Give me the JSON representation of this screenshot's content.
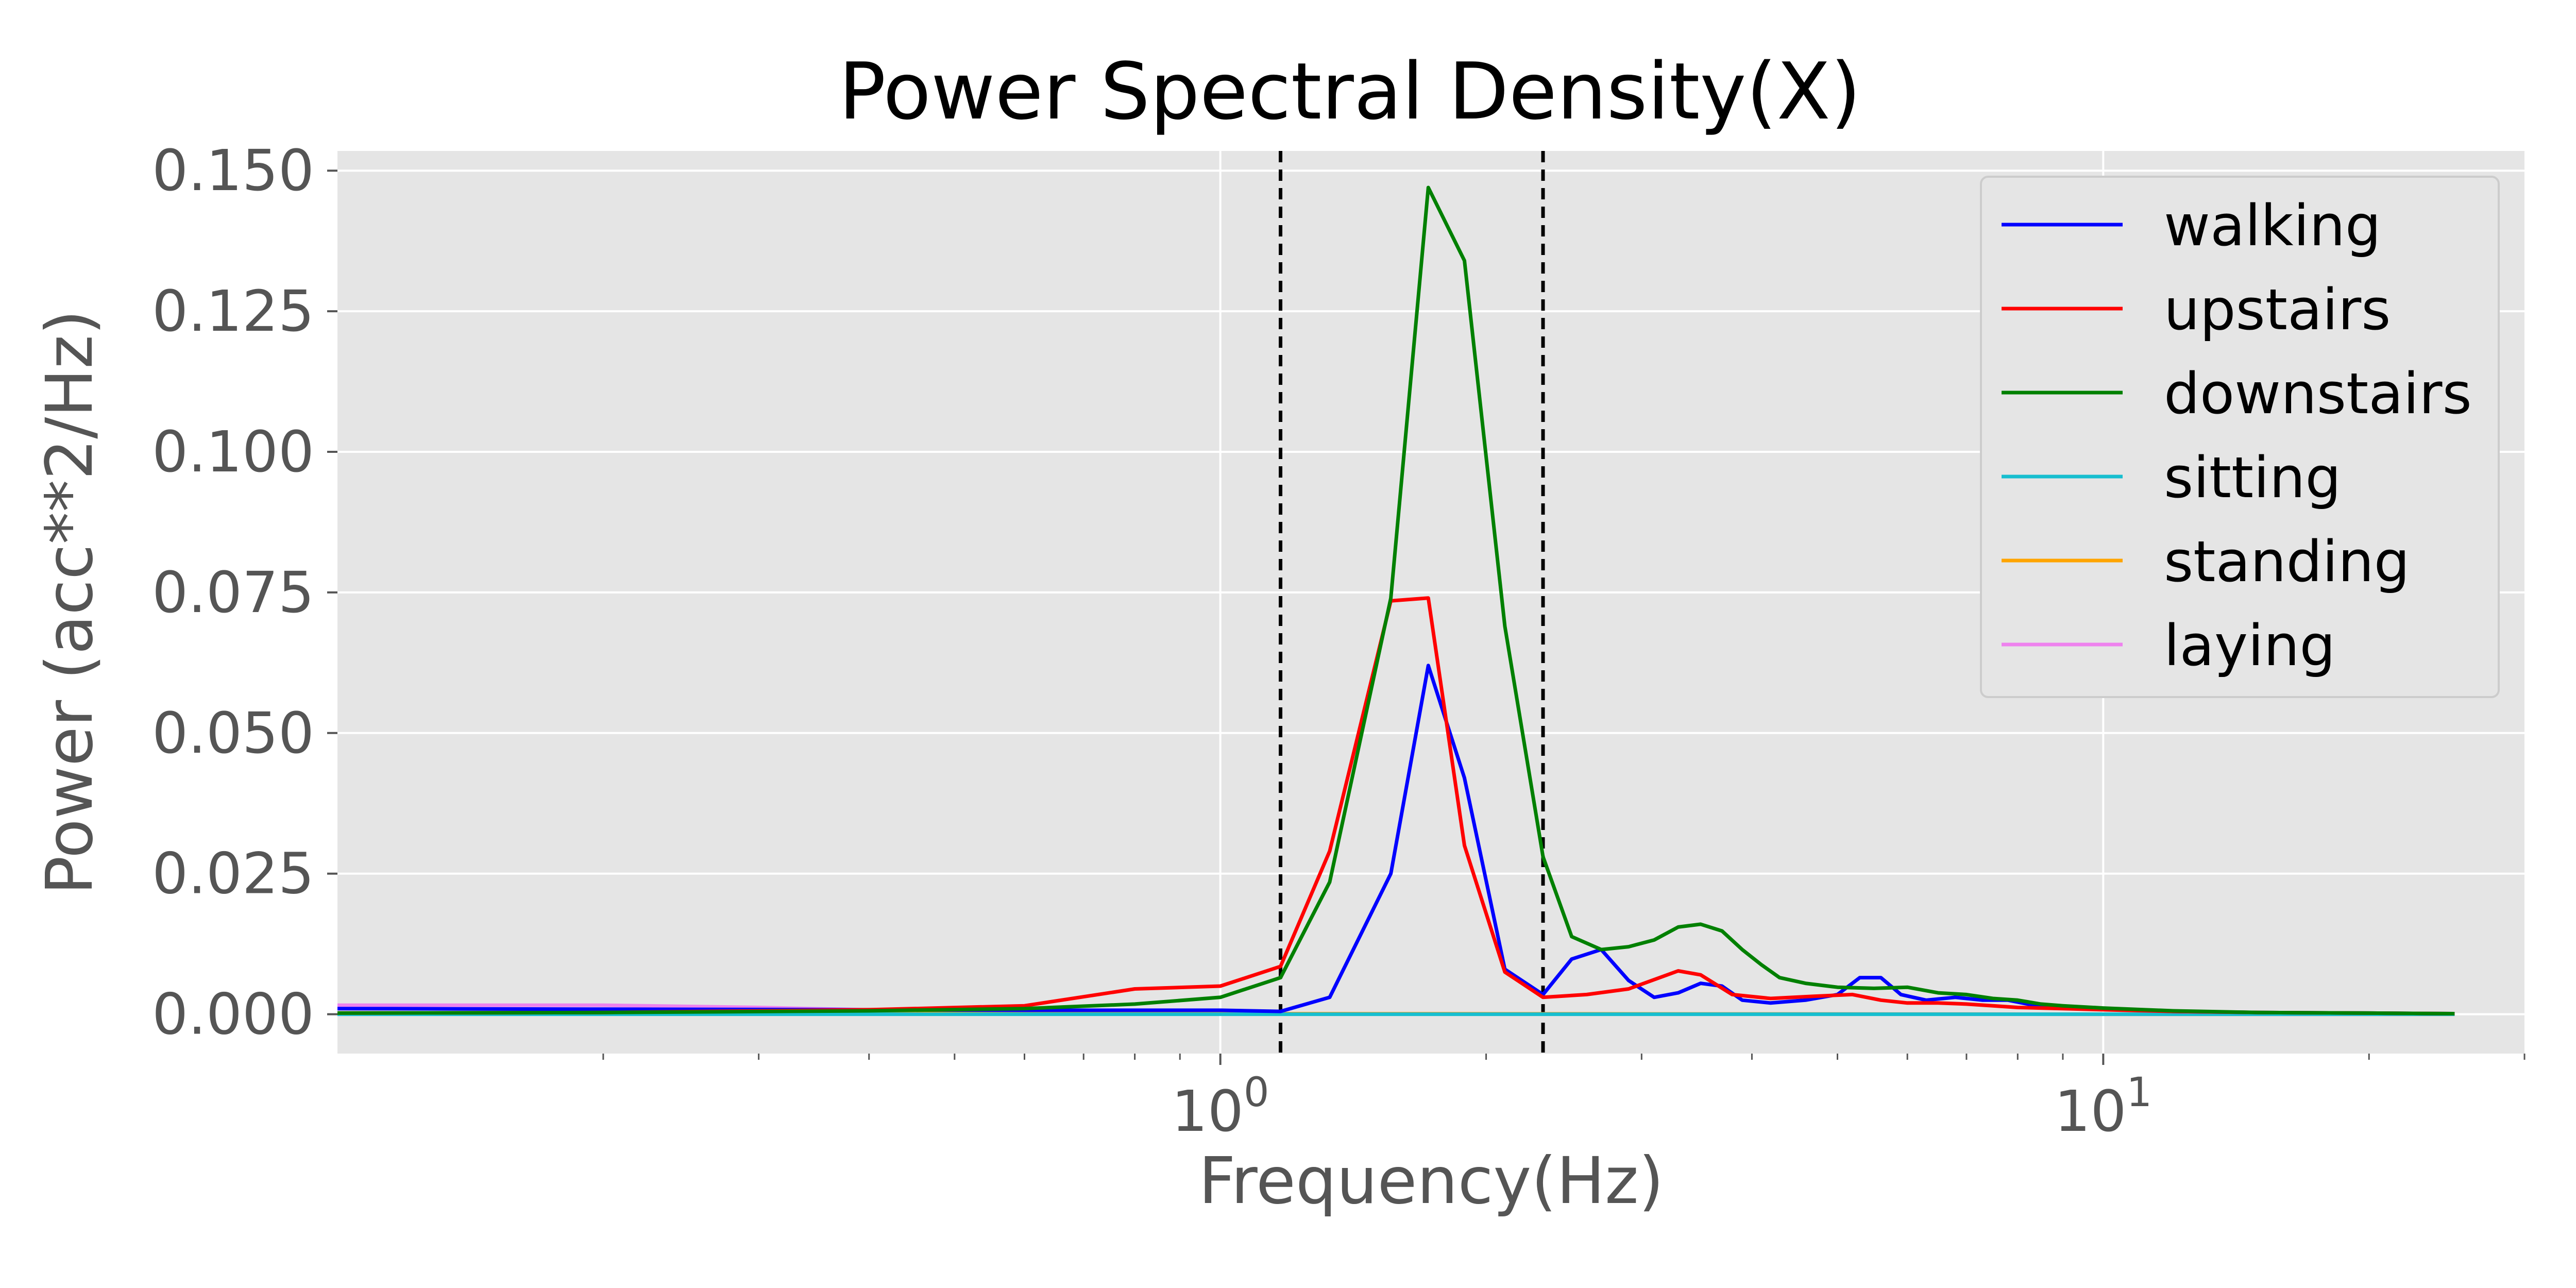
{
  "chart_data": {
    "type": "line",
    "title": "Power Spectral Density(X)",
    "xlabel": "Frequency(Hz)",
    "ylabel": "Power (acc**2/Hz)",
    "x_scale": "log",
    "xlim": [
      0.1,
      30
    ],
    "ylim": [
      -0.007,
      0.1535
    ],
    "yticks": [
      0.0,
      0.025,
      0.05,
      0.075,
      0.1,
      0.125,
      0.15
    ],
    "ytick_labels": [
      "0.000",
      "0.025",
      "0.050",
      "0.075",
      "0.100",
      "0.125",
      "0.150"
    ],
    "xticks": [
      1,
      10
    ],
    "xtick_labels": [
      {
        "base": "10",
        "exp": "0"
      },
      {
        "base": "10",
        "exp": "1"
      }
    ],
    "grid": true,
    "legend_position": "upper right",
    "vlines": [
      1.17,
      2.32
    ],
    "series": [
      {
        "name": "walking",
        "color": "#0000ff",
        "x": [
          0.1,
          0.2,
          0.4,
          0.6,
          0.8,
          1.0,
          1.17,
          1.33,
          1.56,
          1.72,
          1.89,
          2.1,
          2.32,
          2.5,
          2.7,
          2.9,
          3.1,
          3.3,
          3.5,
          3.7,
          3.9,
          4.2,
          4.6,
          5.0,
          5.3,
          5.6,
          5.9,
          6.3,
          6.8,
          7.3,
          7.8,
          8.4,
          9.2,
          10.0,
          12.0,
          15.0,
          20.0,
          25.0
        ],
        "y": [
          0.001,
          0.0009,
          0.0008,
          0.0007,
          0.0007,
          0.0007,
          0.0005,
          0.003,
          0.025,
          0.062,
          0.042,
          0.008,
          0.0035,
          0.0098,
          0.0115,
          0.006,
          0.003,
          0.0038,
          0.0055,
          0.005,
          0.0025,
          0.002,
          0.0025,
          0.0035,
          0.0065,
          0.0065,
          0.0035,
          0.0025,
          0.003,
          0.0025,
          0.0025,
          0.0015,
          0.0012,
          0.0009,
          0.0005,
          0.0003,
          0.0002,
          0.0001
        ]
      },
      {
        "name": "upstairs",
        "color": "#ff0000",
        "x": [
          0.1,
          0.2,
          0.4,
          0.6,
          0.8,
          1.0,
          1.17,
          1.33,
          1.56,
          1.72,
          1.89,
          2.1,
          2.32,
          2.6,
          2.9,
          3.3,
          3.5,
          3.8,
          4.2,
          4.7,
          5.2,
          5.6,
          6.0,
          6.5,
          7.0,
          7.5,
          8.0,
          9.0,
          10.0,
          12.0,
          15.0,
          20.0,
          25.0
        ],
        "y": [
          0.0002,
          0.0003,
          0.0008,
          0.0015,
          0.0045,
          0.005,
          0.0085,
          0.029,
          0.0735,
          0.074,
          0.03,
          0.0075,
          0.003,
          0.0035,
          0.0045,
          0.0077,
          0.007,
          0.0035,
          0.0028,
          0.0032,
          0.0035,
          0.0025,
          0.002,
          0.002,
          0.0018,
          0.0015,
          0.0012,
          0.001,
          0.0008,
          0.0005,
          0.0003,
          0.0002,
          0.0001
        ]
      },
      {
        "name": "downstairs",
        "color": "#008000",
        "x": [
          0.1,
          0.2,
          0.4,
          0.6,
          0.8,
          1.0,
          1.17,
          1.33,
          1.56,
          1.72,
          1.89,
          2.1,
          2.32,
          2.5,
          2.7,
          2.9,
          3.1,
          3.3,
          3.5,
          3.7,
          3.9,
          4.1,
          4.3,
          4.6,
          5.0,
          5.5,
          6.0,
          6.5,
          7.0,
          7.5,
          8.0,
          8.5,
          9.0,
          10.0,
          12.0,
          15.0,
          20.0,
          25.0
        ],
        "y": [
          0.0002,
          0.0003,
          0.0006,
          0.001,
          0.0018,
          0.003,
          0.0065,
          0.0235,
          0.074,
          0.147,
          0.134,
          0.069,
          0.028,
          0.0138,
          0.0115,
          0.012,
          0.0132,
          0.0155,
          0.016,
          0.0148,
          0.0115,
          0.0088,
          0.0065,
          0.0055,
          0.0048,
          0.0046,
          0.0048,
          0.0038,
          0.0035,
          0.0028,
          0.0025,
          0.0018,
          0.0015,
          0.0011,
          0.0006,
          0.0003,
          0.0002,
          0.0001
        ]
      },
      {
        "name": "sitting",
        "color": "#17becf",
        "x": [
          0.1,
          1.0,
          10.0,
          25.0
        ],
        "y": [
          0.0,
          0.0,
          0.0,
          0.0
        ]
      },
      {
        "name": "standing",
        "color": "#ffa500",
        "x": [
          0.1,
          0.2,
          0.4,
          1.0,
          10.0,
          25.0
        ],
        "y": [
          0.0002,
          0.0002,
          0.0002,
          0.0001,
          0.0,
          0.0
        ]
      },
      {
        "name": "laying",
        "color": "#ee82ee",
        "x": [
          0.1,
          0.2,
          0.3,
          0.45,
          0.7,
          1.0,
          10.0,
          25.0
        ],
        "y": [
          0.0016,
          0.0016,
          0.0012,
          0.0006,
          0.0002,
          0.0001,
          0.0,
          0.0
        ]
      }
    ]
  }
}
